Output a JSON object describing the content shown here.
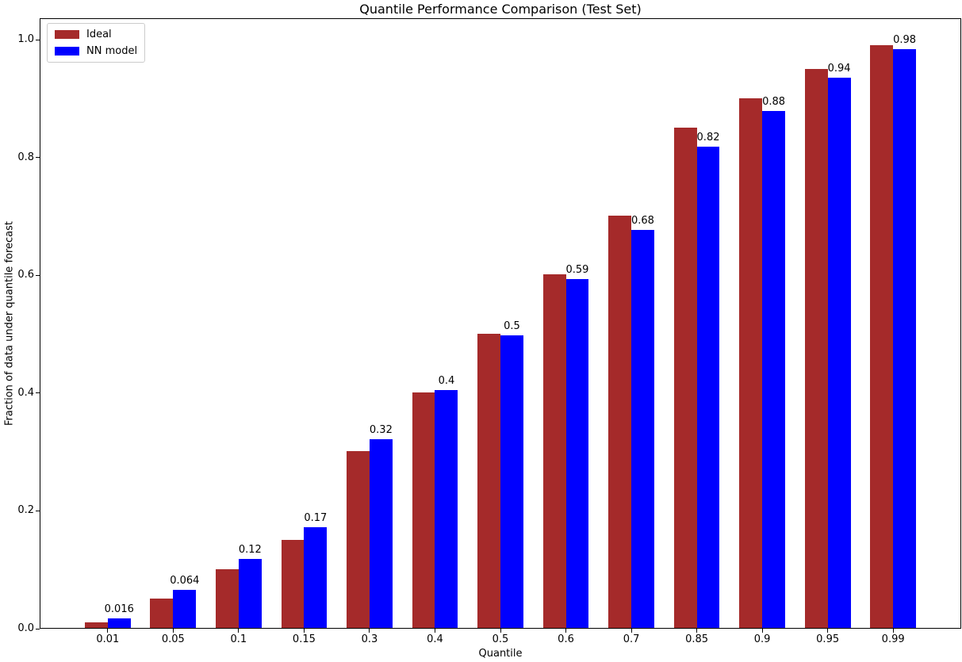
{
  "chart_data": {
    "type": "bar",
    "title": "Quantile Performance Comparison (Test Set)",
    "xlabel": "Quantile",
    "ylabel": "Fraction of data under quantile forecast",
    "categories": [
      "0.01",
      "0.05",
      "0.1",
      "0.15",
      "0.3",
      "0.4",
      "0.5",
      "0.6",
      "0.7",
      "0.85",
      "0.9",
      "0.95",
      "0.99"
    ],
    "series": [
      {
        "name": "Ideal",
        "color": "#A52A2A",
        "values": [
          0.01,
          0.05,
          0.1,
          0.15,
          0.3,
          0.4,
          0.5,
          0.6,
          0.7,
          0.85,
          0.9,
          0.95,
          0.99
        ]
      },
      {
        "name": "NN model",
        "color": "#0000FF",
        "values": [
          0.016,
          0.064,
          0.117,
          0.171,
          0.32,
          0.404,
          0.497,
          0.592,
          0.676,
          0.818,
          0.878,
          0.935,
          0.983
        ]
      }
    ],
    "bar_value_labels": [
      "0.016",
      "0.064",
      "0.12",
      "0.17",
      "0.32",
      "0.4",
      "0.5",
      "0.59",
      "0.68",
      "0.82",
      "0.88",
      "0.94",
      "0.98"
    ],
    "yticks": [
      "0.0",
      "0.2",
      "0.4",
      "0.6",
      "0.8",
      "1.0"
    ],
    "ylim": [
      0,
      1.037
    ],
    "grid": false,
    "legend_position": "upper left",
    "spine_color": "#000000",
    "background_color": "#ffffff"
  }
}
